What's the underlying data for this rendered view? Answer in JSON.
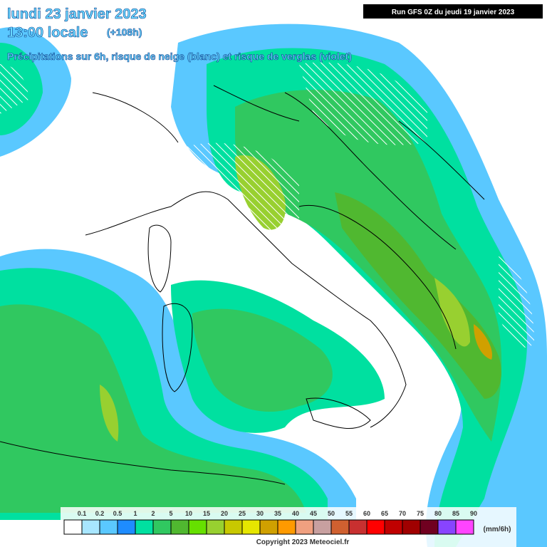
{
  "header": {
    "date": "lundi 23 janvier 2023",
    "time": "13:00 locale",
    "lead": "(+108h)",
    "subtitle": "Précipitations sur 6h, risque de neige (blanc) et risque de verglas (violet)",
    "run": "Run GFS 0Z du jeudi 19 janvier 2023"
  },
  "legend": {
    "labels": [
      "0.1",
      "0.2",
      "0.5",
      "1",
      "2",
      "5",
      "10",
      "15",
      "20",
      "25",
      "30",
      "35",
      "40",
      "45",
      "50",
      "55",
      "60",
      "65",
      "70",
      "75",
      "80",
      "85",
      "90"
    ],
    "colors": [
      "#ffffff",
      "#a8e6ff",
      "#5ac8ff",
      "#1e8cff",
      "#00e0a0",
      "#30c860",
      "#50b830",
      "#66e000",
      "#98d030",
      "#c8c800",
      "#e6e600",
      "#d0a000",
      "#ff9a00",
      "#f0a080",
      "#c8a0a0",
      "#d06030",
      "#c83030",
      "#ff0000",
      "#c00000",
      "#a00000",
      "#700020",
      "#8844ff",
      "#ff44ff"
    ],
    "unit": "(mm/6h)"
  },
  "footer": {
    "copyright": "Copyright 2023 Meteociel.fr"
  }
}
